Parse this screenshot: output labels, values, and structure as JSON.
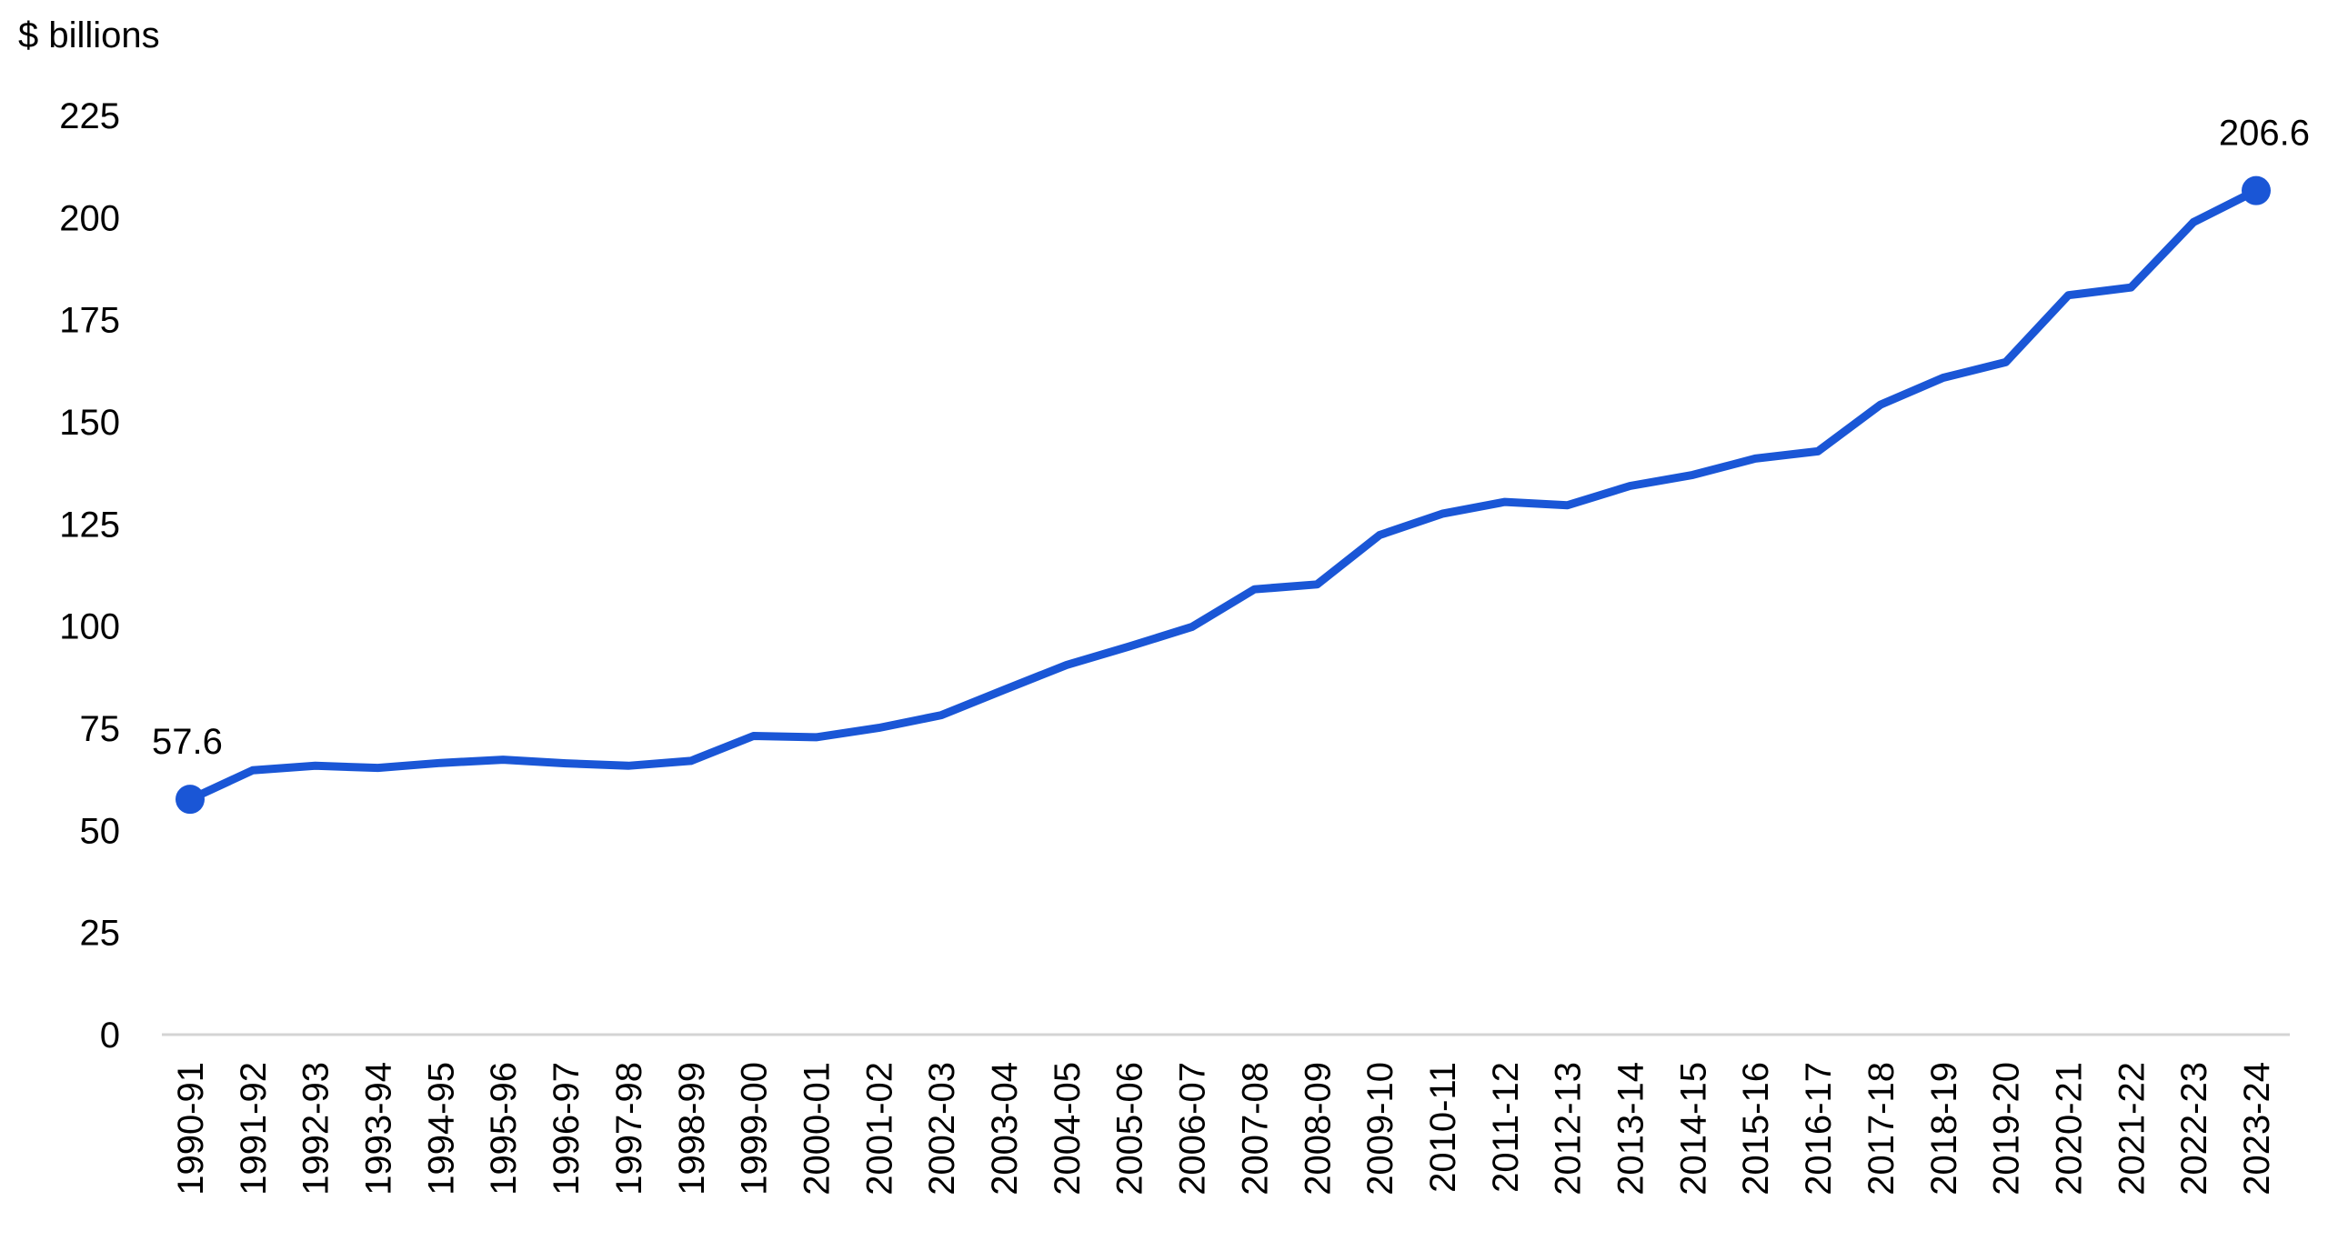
{
  "chart_data": {
    "type": "line",
    "title": "",
    "unit_label": "$ billions",
    "xlabel": "",
    "ylabel": "",
    "ylim": [
      0,
      225
    ],
    "yticks": [
      0,
      25,
      50,
      75,
      100,
      125,
      150,
      175,
      200,
      225
    ],
    "grid": false,
    "legend": "none",
    "categories": [
      "1990-91",
      "1991-92",
      "1992-93",
      "1993-94",
      "1994-95",
      "1995-96",
      "1996-97",
      "1997-98",
      "1998-99",
      "1999-00",
      "2000-01",
      "2001-02",
      "2002-03",
      "2003-04",
      "2004-05",
      "2005-06",
      "2006-07",
      "2007-08",
      "2008-09",
      "2009-10",
      "2010-11",
      "2011-12",
      "2012-13",
      "2013-14",
      "2014-15",
      "2015-16",
      "2016-17",
      "2017-18",
      "2018-19",
      "2019-20",
      "2020-21",
      "2021-22",
      "2022-23",
      "2023-24"
    ],
    "series": [
      {
        "color": "#1a56d6",
        "values": [
          57.6,
          64.7,
          65.8,
          65.3,
          66.5,
          67.3,
          66.4,
          65.8,
          67.0,
          73.1,
          72.8,
          75.1,
          78.2,
          84.4,
          90.5,
          95.0,
          99.8,
          109.0,
          110.2,
          122.3,
          127.5,
          130.4,
          129.6,
          134.3,
          137.0,
          141.0,
          142.8,
          154.2,
          160.8,
          164.6,
          181.0,
          182.9,
          198.9,
          206.6
        ]
      }
    ],
    "annotations": [
      {
        "index": 0,
        "text": "57.6"
      },
      {
        "index": 33,
        "text": "206.6"
      }
    ]
  }
}
